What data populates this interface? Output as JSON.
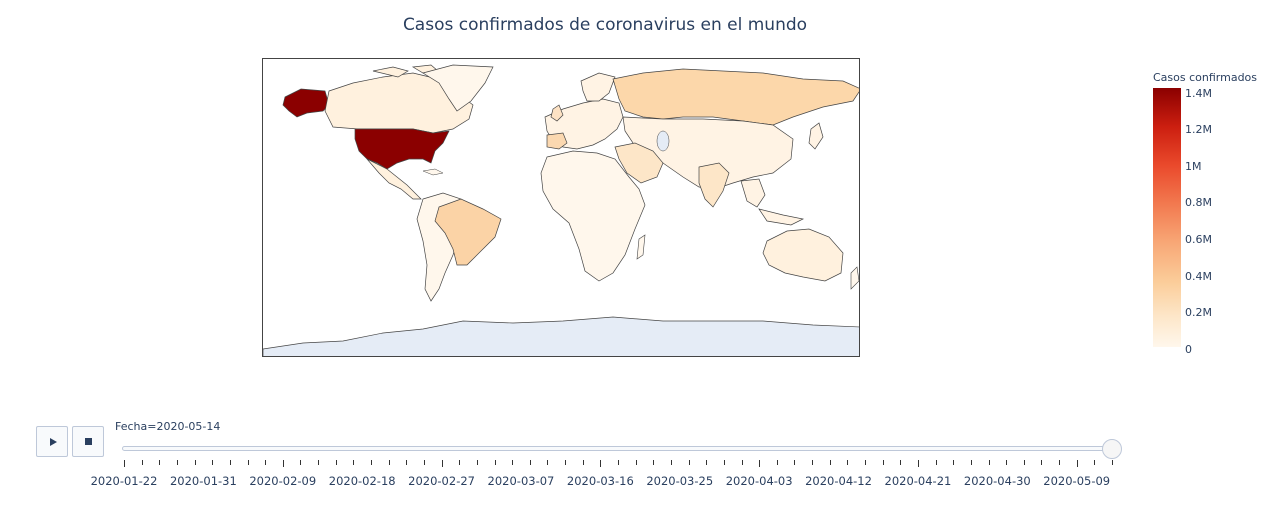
{
  "title": "Casos confirmados de coronavirus en el mundo",
  "colorbar": {
    "title": "Casos confirmados",
    "ticks": [
      "1.4M",
      "1.2M",
      "1M",
      "0.8M",
      "0.6M",
      "0.4M",
      "0.2M",
      "0"
    ],
    "colors": {
      "max": "#8b0000",
      "high": "#ea4a2c",
      "mid": "#f8a877",
      "low": "#fde6c8",
      "zero": "#fff7ec"
    }
  },
  "map": {
    "colors": {
      "ocean": "#ffffff",
      "land_na": "#fff7ec",
      "land": "#fff7ec",
      "border": "#444444",
      "antarctica": "#e5ecf6"
    },
    "regions": [
      {
        "name": "United States",
        "value_m": 1.4
      },
      {
        "name": "Alaska (United States)",
        "value_m": 1.4
      },
      {
        "name": "Canada",
        "value_m": 0.07
      },
      {
        "name": "Russia",
        "value_m": 0.25
      },
      {
        "name": "Brazil",
        "value_m": 0.2
      },
      {
        "name": "Spain",
        "value_m": 0.27
      }
    ]
  },
  "controls": {
    "play_label": "▶",
    "stop_label": "■"
  },
  "slider": {
    "label": "Fecha=2020-05-14",
    "current_value": "2020-05-14",
    "progress_fraction": 1.0,
    "tick_labels": [
      "2020-01-22",
      "2020-01-31",
      "2020-02-09",
      "2020-02-18",
      "2020-02-27",
      "2020-03-07",
      "2020-03-16",
      "2020-03-25",
      "2020-04-03",
      "2020-04-12",
      "2020-04-21",
      "2020-04-30",
      "2020-05-09"
    ]
  }
}
